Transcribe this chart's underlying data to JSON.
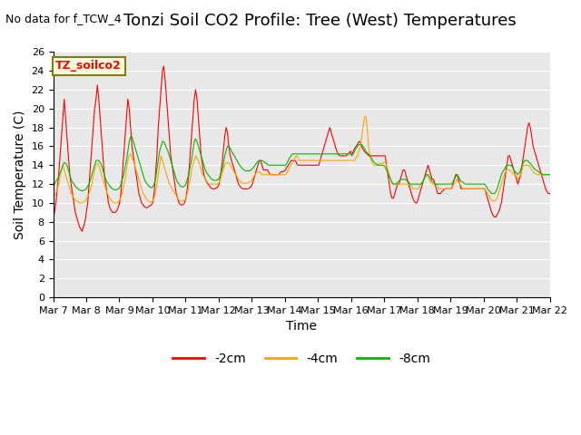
{
  "title": "Tonzi Soil CO2 Profile: Tree (West) Temperatures",
  "subtitle": "No data for f_TCW_4",
  "xlabel": "Time",
  "ylabel": "Soil Temperature (C)",
  "ylim": [
    0,
    26
  ],
  "yticks": [
    0,
    2,
    4,
    6,
    8,
    10,
    12,
    14,
    16,
    18,
    20,
    22,
    24,
    26
  ],
  "xtick_labels": [
    "Mar 7",
    "Mar 8",
    "Mar 9",
    "Mar 10",
    "Mar 11",
    "Mar 12",
    "Mar 13",
    "Mar 14",
    "Mar 15",
    "Mar 16",
    "Mar 17",
    "Mar 18",
    "Mar 19",
    "Mar 20",
    "Mar 21",
    "Mar 22"
  ],
  "series_labels": [
    "-2cm",
    "-4cm",
    "-8cm"
  ],
  "series_colors": [
    "#ff0000",
    "#ffa500",
    "#00bb00"
  ],
  "background_color": "#e8e8e8",
  "title_fontsize": 13,
  "axis_fontsize": 10,
  "tick_fontsize": 8
}
